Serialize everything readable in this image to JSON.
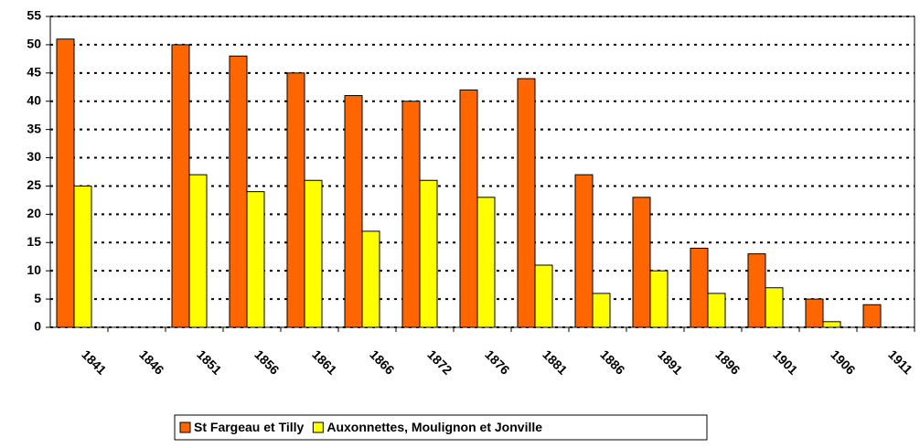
{
  "chart_data": {
    "type": "bar",
    "categories": [
      "1841",
      "1846",
      "1851",
      "1856",
      "1861",
      "1866",
      "1872",
      "1876",
      "1881",
      "1886",
      "1891",
      "1896",
      "1901",
      "1906",
      "1911"
    ],
    "series": [
      {
        "name": "St Fargeau et Tilly",
        "color": "#ff6600",
        "values": [
          51,
          null,
          50,
          48,
          45,
          41,
          40,
          42,
          44,
          27,
          23,
          14,
          13,
          5,
          4
        ]
      },
      {
        "name": "Auxonnettes, Moulignon et Jonville",
        "color": "#ffff00",
        "values": [
          25,
          null,
          27,
          24,
          26,
          17,
          26,
          23,
          11,
          6,
          10,
          6,
          7,
          1,
          null
        ]
      }
    ],
    "ylim": [
      0,
      55
    ],
    "yticks": [
      0,
      5,
      10,
      15,
      20,
      25,
      30,
      35,
      40,
      45,
      50,
      55
    ],
    "grid": true,
    "legend": "bottom"
  }
}
